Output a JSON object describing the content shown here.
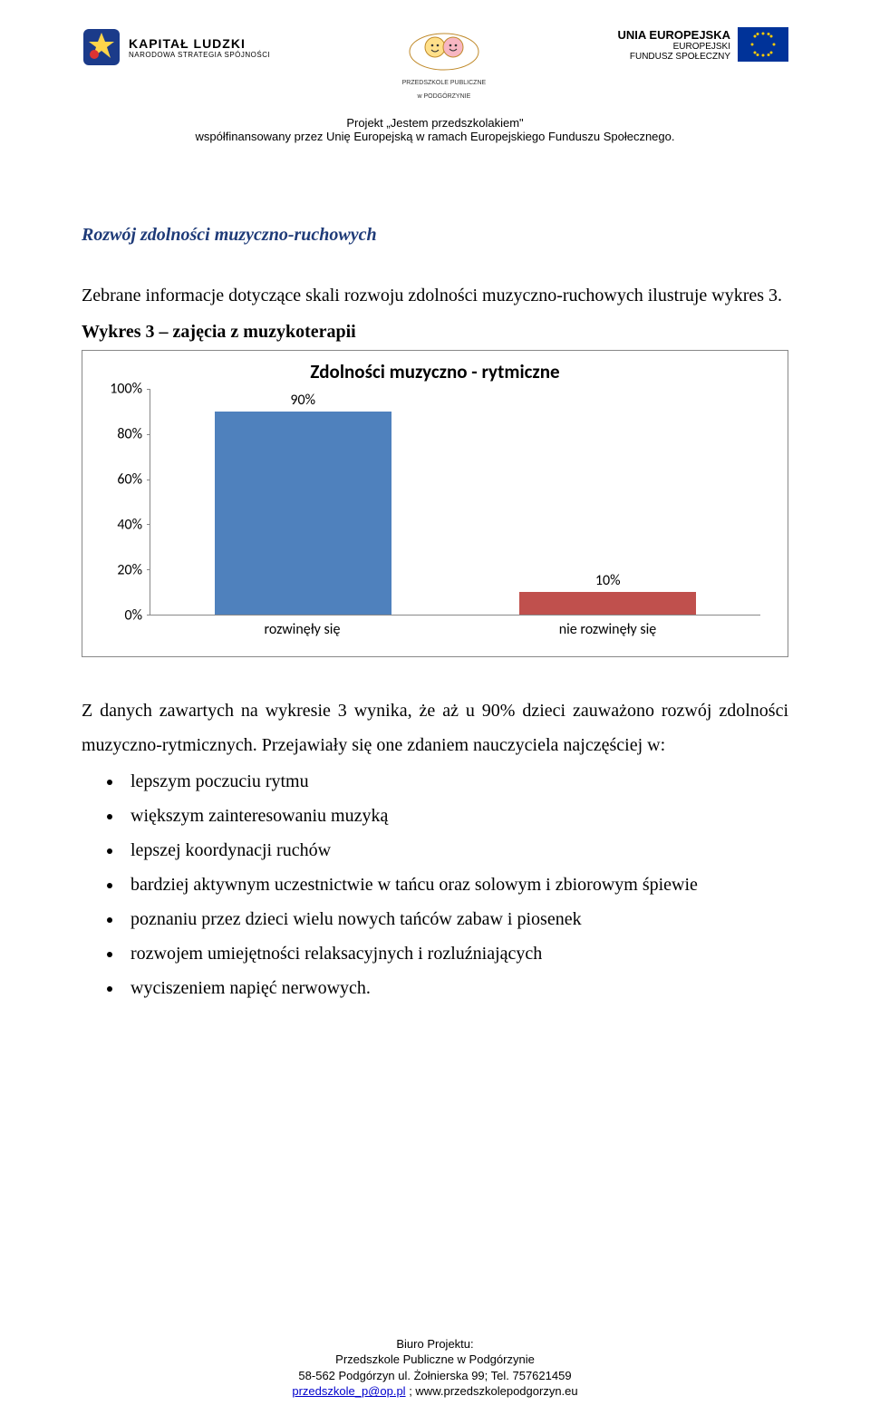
{
  "header": {
    "logo_left": {
      "title": "KAPITAŁ LUDZKI",
      "subtitle": "NARODOWA STRATEGIA SPÓJNOŚCI"
    },
    "logo_center": {
      "line1": "PRZEDSZKOLE PUBLICZNE",
      "line2": "w PODGÓRZYNIE"
    },
    "logo_right": {
      "title": "UNIA EUROPEJSKA",
      "line2": "EUROPEJSKI",
      "line3": "FUNDUSZ SPOŁECZNY"
    },
    "project_line1": "Projekt „Jestem przedszkolakiem\"",
    "project_line2": "współfinansowany przez Unię Europejską w ramach Europejskiego Funduszu Społecznego."
  },
  "section": {
    "heading": "Rozwój zdolności muzyczno-ruchowych",
    "intro": "Zebrane informacje dotyczące skali rozwoju zdolności muzyczno-ruchowych ilustruje wykres 3.",
    "fig_caption": "Wykres 3 – zajęcia z muzykoterapii"
  },
  "chart": {
    "type": "bar",
    "title": "Zdolności muzyczno - rytmiczne",
    "categories": [
      "rozwinęły się",
      "nie rozwinęły się"
    ],
    "values": [
      90,
      10
    ],
    "value_labels": [
      "90%",
      "10%"
    ],
    "bar_colors": [
      "#4f81bd",
      "#c0504d"
    ],
    "ylim": [
      0,
      100
    ],
    "ytick_step": 20,
    "ytick_labels": [
      "0%",
      "20%",
      "40%",
      "60%",
      "80%",
      "100%"
    ],
    "border_color": "#888888",
    "background_color": "#ffffff",
    "title_fontsize": 21,
    "label_fontsize": 16,
    "bar_width": 0.58
  },
  "analysis": {
    "lead": "Z danych zawartych na wykresie 3 wynika, że aż  u 90% dzieci zauważono rozwój zdolności muzyczno-rytmicznych. Przejawiały się  one zdaniem nauczyciela najczęściej w:",
    "bullets": [
      "lepszym poczuciu rytmu",
      "większym zainteresowaniu muzyką",
      "lepszej koordynacji ruchów",
      "bardziej aktywnym uczestnictwie w tańcu oraz solowym i zbiorowym śpiewie",
      "poznaniu przez dzieci wielu nowych tańców zabaw i piosenek",
      "rozwojem umiejętności relaksacyjnych i rozluźniających",
      "wyciszeniem napięć nerwowych."
    ]
  },
  "footer": {
    "line1": "Biuro Projektu:",
    "line2": "Przedszkole Publiczne w Podgórzynie",
    "line3": "58-562 Podgórzyn ul. Żołnierska 99; Tel. 757621459",
    "email": "przedszkole_p@op.pl",
    "sep": "  ;  ",
    "url": "www.przedszkolepodgorzyn.eu"
  }
}
